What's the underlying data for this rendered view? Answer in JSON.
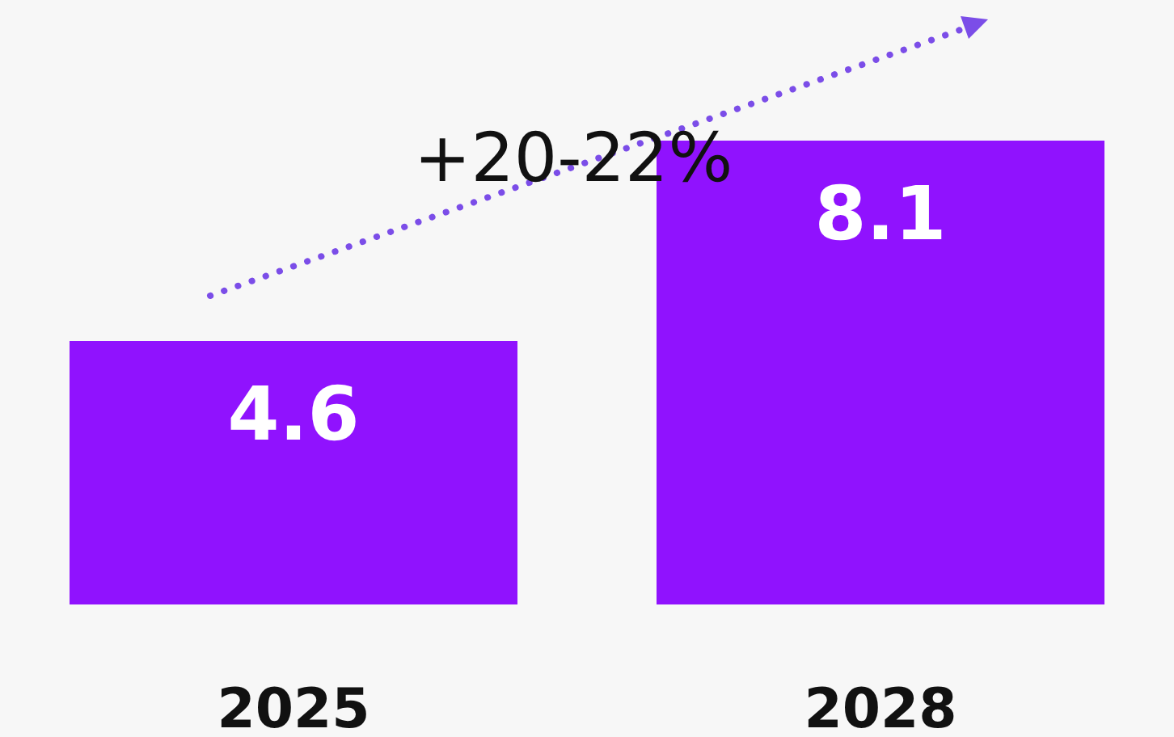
{
  "chart_data": {
    "type": "bar",
    "categories": [
      "2025",
      "2028"
    ],
    "values": [
      4.6,
      8.1
    ],
    "color": "#9012fe",
    "data_labels": true,
    "annotations": [
      "+20-22%"
    ]
  }
}
